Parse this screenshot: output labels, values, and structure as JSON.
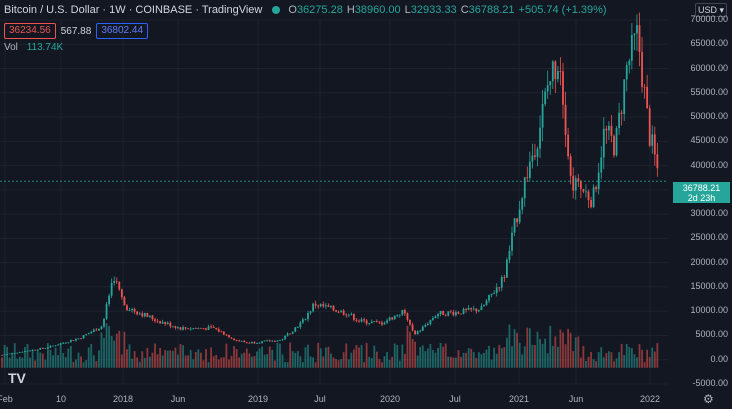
{
  "header": {
    "symbol": "Bitcoin / U.S. Dollar · 1W · COINBASE · TradingView",
    "open_label": "O",
    "open": "36275.28",
    "high_label": "H",
    "high": "38960.00",
    "low_label": "L",
    "low": "32933.33",
    "close_label": "C",
    "close": "36788.21",
    "change": "+505.74 (+1.39%)"
  },
  "trade": {
    "sell_price": "36234.56",
    "spread": "567.88",
    "buy_price": "36802.44"
  },
  "volume": {
    "label": "Vol",
    "value": "113.74K"
  },
  "currency": "USD ▾",
  "last_price": {
    "value": "36788.21",
    "countdown": "2d 23h"
  },
  "colors": {
    "up": "#26a69a",
    "down": "#ef5350",
    "background": "#131722",
    "grid": "#1e222d",
    "accent_buy": "#2962ff"
  },
  "icons": {
    "logo": "tradingview-logo-icon",
    "settings": "gear-icon"
  },
  "logo_text": "TV",
  "chart_data": {
    "type": "candlestick",
    "title": "Bitcoin / U.S. Dollar · 1W · COINBASE",
    "x_tick_labels": [
      "Feb",
      "10",
      "2018",
      "Jun",
      "2019",
      "Jul",
      "2020",
      "Jul",
      "2021",
      "Jun",
      "2022"
    ],
    "y_tick_labels": [
      "70000.00",
      "65000.00",
      "60000.00",
      "55000.00",
      "50000.00",
      "45000.00",
      "40000.00",
      "35000.00",
      "30000.00",
      "25000.00",
      "20000.00",
      "15000.00",
      "10000.00",
      "5000.00",
      "0.00",
      "-5000.00"
    ],
    "ylim": [
      -5000,
      70000
    ],
    "grid": true,
    "price_path": [
      [
        "2017-02",
        1000
      ],
      [
        "2017-06",
        2500
      ],
      [
        "2017-09",
        4500
      ],
      [
        "2017-11",
        7000
      ],
      [
        "2017-12",
        17500
      ],
      [
        "2018-01",
        11000
      ],
      [
        "2018-02",
        10000
      ],
      [
        "2018-04",
        8000
      ],
      [
        "2018-06",
        6500
      ],
      [
        "2018-09",
        6500
      ],
      [
        "2018-11",
        4000
      ],
      [
        "2018-12",
        3500
      ],
      [
        "2019-03",
        4000
      ],
      [
        "2019-05",
        8000
      ],
      [
        "2019-06",
        11500
      ],
      [
        "2019-09",
        9500
      ],
      [
        "2019-10",
        8000
      ],
      [
        "2019-12",
        7500
      ],
      [
        "2020-02",
        10000
      ],
      [
        "2020-03",
        5000
      ],
      [
        "2020-05",
        9500
      ],
      [
        "2020-07",
        9800
      ],
      [
        "2020-09",
        10500
      ],
      [
        "2020-11",
        17000
      ],
      [
        "2020-12",
        28000
      ],
      [
        "2021-01",
        38000
      ],
      [
        "2021-02",
        46000
      ],
      [
        "2021-03",
        57000
      ],
      [
        "2021-04",
        63000
      ],
      [
        "2021-05",
        37000
      ],
      [
        "2021-07",
        33000
      ],
      [
        "2021-08",
        47000
      ],
      [
        "2021-09",
        44000
      ],
      [
        "2021-10",
        60000
      ],
      [
        "2021-11",
        67000
      ],
      [
        "2021-12",
        47000
      ],
      [
        "2022-01",
        36788
      ]
    ],
    "volume_trend": "volume bars at base, spikes around 2020-03 and 2021"
  }
}
